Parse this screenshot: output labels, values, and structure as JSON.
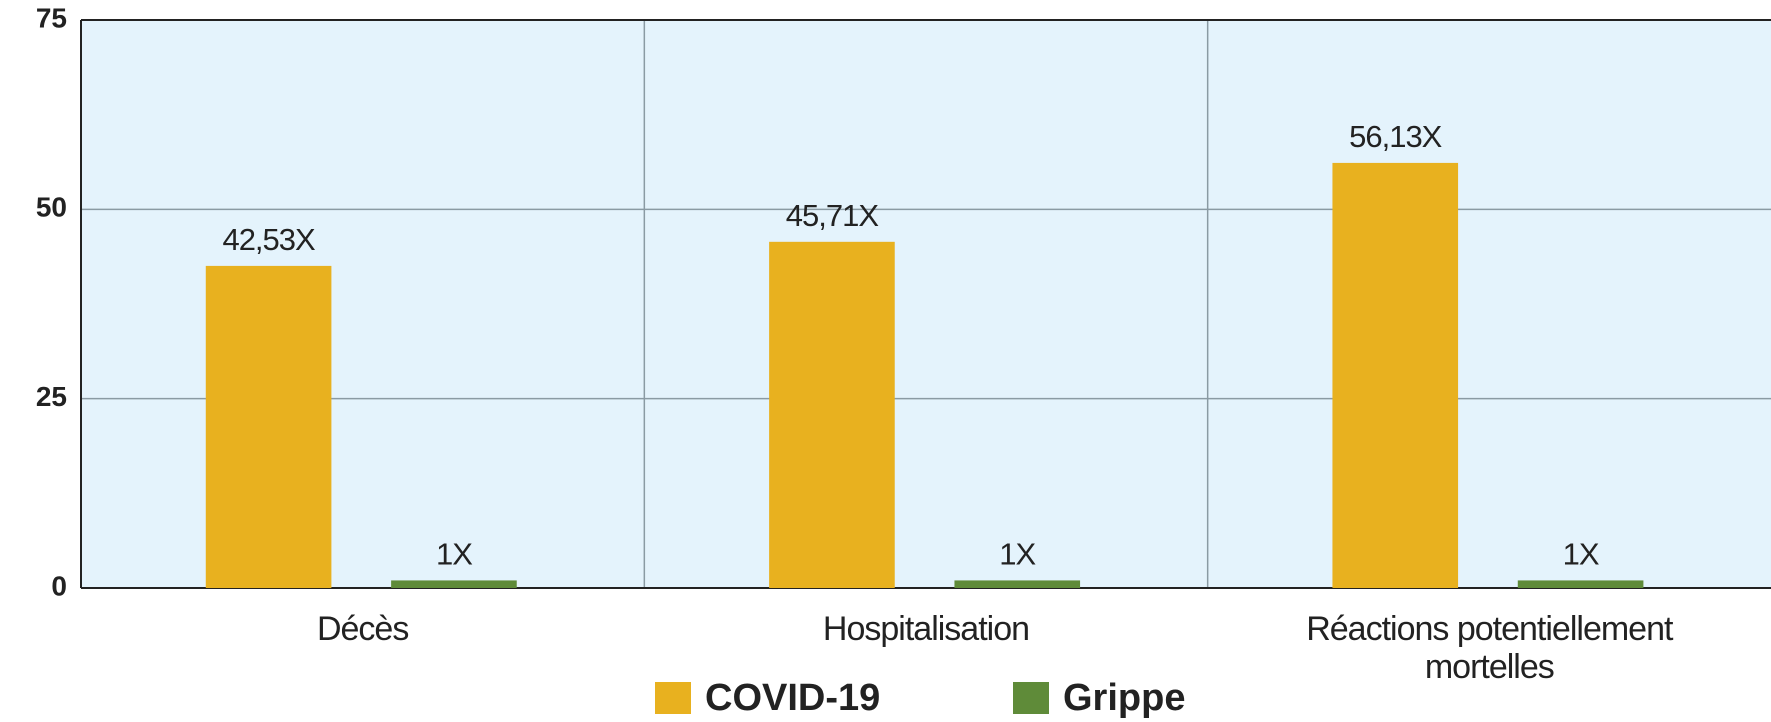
{
  "chart_data": {
    "type": "bar",
    "categories": [
      "Décès",
      "Hospitalisation",
      "Réactions potentiellement mortelles"
    ],
    "series": [
      {
        "name": "COVID-19",
        "color": "#e8b11f",
        "values": [
          42.53,
          45.71,
          56.13
        ],
        "value_labels": [
          "42,53X",
          "45,71X",
          "56,13X"
        ]
      },
      {
        "name": "Grippe",
        "color": "#5f8b39",
        "values": [
          1,
          1,
          1
        ],
        "value_labels": [
          "1X",
          "1X",
          "1X"
        ]
      }
    ],
    "ylim": [
      0,
      75
    ],
    "yticks": [
      0,
      25,
      50,
      75
    ],
    "grid": true,
    "background": "#e4f3fc"
  }
}
